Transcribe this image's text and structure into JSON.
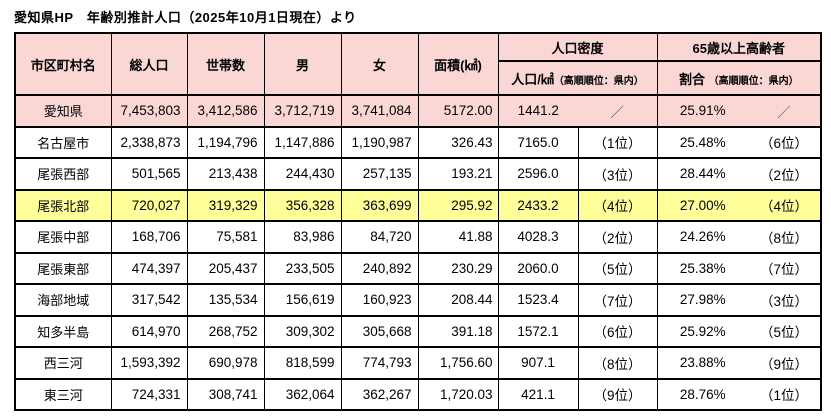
{
  "title": "愛知県HP　年齢別推計人口（2025年10月1日現在）より",
  "colors": {
    "header_pink": "#FAD7D5",
    "highlight_yellow": "#FFFF99",
    "border_black": "#000000"
  },
  "table": {
    "headers": {
      "name": "市区町村名",
      "total_population": "総人口",
      "households": "世帯数",
      "male": "男",
      "female": "女",
      "area": "面積(㎢)",
      "density_group": "人口密度",
      "density_sub": "人口/㎢",
      "density_sub_note": "（高順順位：県内）",
      "elderly_group": "65歳以上高齢者",
      "elderly_sub": "割合",
      "elderly_sub_note": "（高順順位：県内）"
    },
    "rows": [
      {
        "name": "愛知県",
        "total": "7,453,803",
        "households": "3,412,586",
        "male": "3,712,719",
        "female": "3,741,084",
        "area": "5172.00",
        "density": "1441.2",
        "density_rank": "／",
        "elderly": "25.91%",
        "elderly_rank": "／",
        "highlight": "pink",
        "merge_density": true
      },
      {
        "name": "名古屋市",
        "total": "2,338,873",
        "households": "1,194,796",
        "male": "1,147,886",
        "female": "1,190,987",
        "area": "326.43",
        "density": "7165.0",
        "density_rank": "（1位）",
        "elderly": "25.48%",
        "elderly_rank": "（6位）"
      },
      {
        "name": "尾張西部",
        "total": "501,565",
        "households": "213,438",
        "male": "244,430",
        "female": "257,135",
        "area": "193.21",
        "density": "2596.0",
        "density_rank": "（3位）",
        "elderly": "28.44%",
        "elderly_rank": "（2位）"
      },
      {
        "name": "尾張北部",
        "total": "720,027",
        "households": "319,329",
        "male": "356,328",
        "female": "363,699",
        "area": "295.92",
        "density": "2433.2",
        "density_rank": "（4位）",
        "elderly": "27.00%",
        "elderly_rank": "（4位）",
        "highlight": "yellow"
      },
      {
        "name": "尾張中部",
        "total": "168,706",
        "households": "75,581",
        "male": "83,986",
        "female": "84,720",
        "area": "41.88",
        "density": "4028.3",
        "density_rank": "（2位）",
        "elderly": "24.26%",
        "elderly_rank": "（8位）"
      },
      {
        "name": "尾張東部",
        "total": "474,397",
        "households": "205,437",
        "male": "233,505",
        "female": "240,892",
        "area": "230.29",
        "density": "2060.0",
        "density_rank": "（5位）",
        "elderly": "25.38%",
        "elderly_rank": "（7位）"
      },
      {
        "name": "海部地域",
        "total": "317,542",
        "households": "135,534",
        "male": "156,619",
        "female": "160,923",
        "area": "208.44",
        "density": "1523.4",
        "density_rank": "（7位）",
        "elderly": "27.98%",
        "elderly_rank": "（3位）"
      },
      {
        "name": "知多半島",
        "total": "614,970",
        "households": "268,752",
        "male": "309,302",
        "female": "305,668",
        "area": "391.18",
        "density": "1572.1",
        "density_rank": "（6位）",
        "elderly": "25.92%",
        "elderly_rank": "（5位）"
      },
      {
        "name": "西三河",
        "total": "1,593,392",
        "households": "690,978",
        "male": "818,599",
        "female": "774,793",
        "area": "1,756.60",
        "density": "907.1",
        "density_rank": "（8位）",
        "elderly": "23.88%",
        "elderly_rank": "（9位）"
      },
      {
        "name": "東三河",
        "total": "724,331",
        "households": "308,741",
        "male": "362,064",
        "female": "362,267",
        "area": "1,720.03",
        "density": "421.1",
        "density_rank": "（9位）",
        "elderly": "28.76%",
        "elderly_rank": "（1位）"
      }
    ]
  }
}
